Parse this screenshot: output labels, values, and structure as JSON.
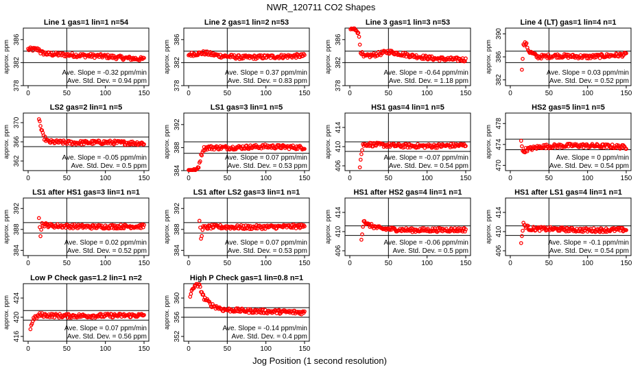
{
  "figure": {
    "title": "NWR_120711  CO2 Shapes",
    "xlabel": "Jog Position (1 second resolution)"
  },
  "chart_data": [
    {
      "type": "scatter",
      "title": "Line 1 gas=1 lin=1 n=54",
      "ylabel": "approx. ppm",
      "xlim": [
        0,
        150
      ],
      "ylim": [
        378,
        388
      ],
      "yticks": [
        378,
        382,
        386
      ],
      "xticks": [
        0,
        50,
        100,
        150
      ],
      "ref_lines": [
        384,
        382
      ],
      "stat_slope": "Ave. Slope = -0.32 ppm/min",
      "stat_sd": "Ave. Std. Dev. = 0.94 ppm",
      "series": [
        {
          "color": "#ff0000",
          "segments": [
            [
              0,
              384.3
            ],
            [
              15,
              384.3
            ],
            [
              16,
              383.8
            ],
            [
              25,
              383.5
            ],
            [
              60,
              383.3
            ],
            [
              100,
              383.1
            ],
            [
              125,
              382.8
            ],
            [
              150,
              382.6
            ]
          ]
        }
      ]
    },
    {
      "type": "scatter",
      "title": "Line 2 gas=1 lin=2 n=53",
      "ylabel": "approx. ppm",
      "xlim": [
        0,
        150
      ],
      "ylim": [
        378,
        388
      ],
      "yticks": [
        378,
        382,
        386
      ],
      "xticks": [
        0,
        50,
        100,
        150
      ],
      "ref_lines": [
        384,
        382
      ],
      "stat_slope": "Ave. Slope = 0.37 ppm/min",
      "stat_sd": "Ave. Std. Dev. = 0.83 ppm",
      "series": [
        {
          "color": "#ff0000",
          "segments": [
            [
              0,
              383.4
            ],
            [
              20,
              383.7
            ],
            [
              40,
              383.2
            ],
            [
              70,
              382.9
            ],
            [
              100,
              383.0
            ],
            [
              150,
              383.2
            ]
          ]
        }
      ]
    },
    {
      "type": "scatter",
      "title": "Line 3 gas=1 lin=3 n=53",
      "ylabel": "approx. ppm",
      "xlim": [
        0,
        150
      ],
      "ylim": [
        378,
        388
      ],
      "yticks": [
        378,
        382,
        386
      ],
      "xticks": [
        0,
        50,
        100,
        150
      ],
      "ref_lines": [
        384,
        382
      ],
      "stat_slope": "Ave. Slope = -0.64 ppm/min",
      "stat_sd": "Ave. Std. Dev. = 1.18 ppm",
      "series": [
        {
          "color": "#ff0000",
          "segments": [
            [
              1,
              387.8
            ],
            [
              9,
              387.8
            ],
            [
              12,
              386.5
            ],
            [
              14,
              384.0
            ],
            [
              18,
              383.0
            ],
            [
              30,
              383.3
            ],
            [
              50,
              383.9
            ],
            [
              80,
              383.2
            ],
            [
              110,
              382.7
            ],
            [
              150,
              382.5
            ]
          ]
        }
      ]
    },
    {
      "type": "scatter",
      "title": "Line 4 (LT) gas=1 lin=4 n=1",
      "ylabel": "approx. ppm",
      "xlim": [
        0,
        150
      ],
      "ylim": [
        381,
        391
      ],
      "yticks": [
        382,
        386,
        390
      ],
      "xticks": [
        0,
        50,
        100,
        150
      ],
      "ref_lines": [
        387,
        385
      ],
      "stat_slope": "Ave. Slope = 0.03 ppm/min",
      "stat_sd": "Ave. Std. Dev. = 0.52 ppm",
      "series": [
        {
          "color": "#ff0000",
          "segments": [
            [
              15,
              384.0
            ],
            [
              17,
              388.0
            ],
            [
              20,
              388.4
            ],
            [
              24,
              387.0
            ],
            [
              35,
              386.0
            ],
            [
              60,
              386.2
            ],
            [
              100,
              386.0
            ],
            [
              150,
              386.4
            ]
          ]
        }
      ]
    },
    {
      "type": "scatter",
      "title": "LS2 gas=2 lin=1 n=5",
      "ylabel": "approx. ppm",
      "xlim": [
        0,
        150
      ],
      "ylim": [
        360,
        372
      ],
      "yticks": [
        362,
        366,
        370
      ],
      "xticks": [
        0,
        50,
        100,
        150
      ],
      "ref_lines": [
        367,
        365
      ],
      "stat_slope": "Ave. Slope = -0.05 ppm/min",
      "stat_sd": "Ave. Std. Dev. = 0.5 ppm",
      "series": [
        {
          "color": "#ff0000",
          "segments": [
            [
              14,
              371.0
            ],
            [
              17,
              368.5
            ],
            [
              20,
              367.0
            ],
            [
              26,
              366.0
            ],
            [
              60,
              365.8
            ],
            [
              100,
              365.9
            ],
            [
              150,
              365.7
            ]
          ]
        }
      ]
    },
    {
      "type": "scatter",
      "title": "LS1 gas=3 lin=1 n=5",
      "ylabel": "approx. ppm",
      "xlim": [
        0,
        150
      ],
      "ylim": [
        384,
        394
      ],
      "yticks": [
        384,
        388,
        392
      ],
      "xticks": [
        0,
        50,
        100,
        150
      ],
      "ref_lines": [
        389,
        387
      ],
      "stat_slope": "Ave. Slope = 0.07 ppm/min",
      "stat_sd": "Ave. Std. Dev. = 0.53 ppm",
      "series": [
        {
          "color": "#ff0000",
          "segments": [
            [
              0,
              384.0
            ],
            [
              10,
              384.0
            ],
            [
              13,
              384.8
            ],
            [
              16,
              386.5
            ],
            [
              19,
              387.8
            ],
            [
              25,
              388.0
            ],
            [
              60,
              388.0
            ],
            [
              100,
              388.2
            ],
            [
              150,
              388.0
            ]
          ]
        }
      ]
    },
    {
      "type": "scatter",
      "title": "HS1 gas=4 lin=1 n=5",
      "ylabel": "approx. ppm",
      "xlim": [
        0,
        150
      ],
      "ylim": [
        405,
        417
      ],
      "yticks": [
        406,
        410,
        414
      ],
      "xticks": [
        0,
        50,
        100,
        150
      ],
      "ref_lines": [
        411,
        409
      ],
      "stat_slope": "Ave. Slope = -0.07 ppm/min",
      "stat_sd": "Ave. Std. Dev. = 0.54 ppm",
      "series": [
        {
          "color": "#ff0000",
          "segments": [
            [
              13,
              406.0
            ],
            [
              15,
              408.5
            ],
            [
              17,
              410.3
            ],
            [
              22,
              410.5
            ],
            [
              60,
              410.2
            ],
            [
              100,
              410.1
            ],
            [
              150,
              410.3
            ]
          ]
        }
      ]
    },
    {
      "type": "scatter",
      "title": "HS2 gas=5 lin=1 n=5",
      "ylabel": "approx. ppm",
      "xlim": [
        0,
        150
      ],
      "ylim": [
        469,
        480
      ],
      "yticks": [
        470,
        474,
        478
      ],
      "xticks": [
        0,
        50,
        100,
        150
      ],
      "ref_lines": [
        475,
        473
      ],
      "stat_slope": "Ave. Slope = 0 ppm/min",
      "stat_sd": "Ave. Std. Dev. = 0.54 ppm",
      "series": [
        {
          "color": "#ff0000",
          "segments": [
            [
              14,
              475.0
            ],
            [
              16,
              472.5
            ],
            [
              20,
              473.0
            ],
            [
              40,
              473.6
            ],
            [
              80,
              473.8
            ],
            [
              120,
              473.7
            ],
            [
              150,
              473.5
            ]
          ]
        }
      ]
    },
    {
      "type": "scatter",
      "title": "LS1 after HS1 gas=3 lin=1 n=1",
      "ylabel": "approx. ppm",
      "xlim": [
        0,
        150
      ],
      "ylim": [
        383,
        394
      ],
      "yticks": [
        384,
        388,
        392
      ],
      "xticks": [
        0,
        50,
        100,
        150
      ],
      "ref_lines": [
        389.3,
        387.3
      ],
      "stat_slope": "Ave. Slope = 0.02 ppm/min",
      "stat_sd": "Ave. Std. Dev. = 0.52 ppm",
      "series": [
        {
          "color": "#ff0000",
          "segments": [
            [
              14,
              390.5
            ],
            [
              16,
              387.0
            ],
            [
              18,
              389.0
            ],
            [
              30,
              388.7
            ],
            [
              80,
              388.5
            ],
            [
              150,
              388.6
            ]
          ]
        }
      ]
    },
    {
      "type": "scatter",
      "title": "LS1 after LS2 gas=3 lin=1 n=1",
      "ylabel": "approx. ppm",
      "xlim": [
        0,
        150
      ],
      "ylim": [
        383,
        394
      ],
      "yticks": [
        384,
        388,
        392
      ],
      "xticks": [
        0,
        50,
        100,
        150
      ],
      "ref_lines": [
        389.3,
        387.3
      ],
      "stat_slope": "Ave. Slope = 0.07 ppm/min",
      "stat_sd": "Ave. Std. Dev. = 0.53 ppm",
      "series": [
        {
          "color": "#ff0000",
          "segments": [
            [
              14,
              389.8
            ],
            [
              16,
              386.5
            ],
            [
              19,
              388.3
            ],
            [
              30,
              388.5
            ],
            [
              80,
              388.4
            ],
            [
              150,
              388.6
            ]
          ]
        }
      ]
    },
    {
      "type": "scatter",
      "title": "HS1 after HS2 gas=4 lin=1 n=1",
      "ylabel": "approx. ppm",
      "xlim": [
        0,
        150
      ],
      "ylim": [
        405,
        417
      ],
      "yticks": [
        406,
        410,
        414
      ],
      "xticks": [
        0,
        50,
        100,
        150
      ],
      "ref_lines": [
        411.2,
        409.2
      ],
      "stat_slope": "Ave. Slope = -0.06 ppm/min",
      "stat_sd": "Ave. Std. Dev. = 0.5 ppm",
      "series": [
        {
          "color": "#ff0000",
          "segments": [
            [
              15,
              408.5
            ],
            [
              18,
              412.5
            ],
            [
              22,
              411.5
            ],
            [
              40,
              410.6
            ],
            [
              80,
              410.3
            ],
            [
              150,
              410.4
            ]
          ]
        }
      ]
    },
    {
      "type": "scatter",
      "title": "HS1 after LS1 gas=4 lin=1 n=1",
      "ylabel": "approx. ppm",
      "xlim": [
        0,
        150
      ],
      "ylim": [
        405,
        417
      ],
      "yticks": [
        406,
        410,
        414
      ],
      "xticks": [
        0,
        50,
        100,
        150
      ],
      "ref_lines": [
        411.2,
        409.2
      ],
      "stat_slope": "Ave. Slope = -0.1 ppm/min",
      "stat_sd": "Ave. Std. Dev. = 0.54 ppm",
      "series": [
        {
          "color": "#ff0000",
          "segments": [
            [
              14,
              407.8
            ],
            [
              17,
              411.5
            ],
            [
              25,
              410.6
            ],
            [
              60,
              410.5
            ],
            [
              100,
              410.3
            ],
            [
              150,
              410.4
            ]
          ]
        }
      ]
    },
    {
      "type": "scatter",
      "title": "Low P Check gas=1.2 lin=1 n=2",
      "ylabel": "approx. ppm",
      "xlim": [
        0,
        150
      ],
      "ylim": [
        415,
        427
      ],
      "yticks": [
        416,
        420,
        424
      ],
      "xticks": [
        0,
        50,
        100,
        150
      ],
      "ref_lines": [
        421.4,
        419.4
      ],
      "stat_slope": "Ave. Slope = 0.07 ppm/min",
      "stat_sd": "Ave. Std. Dev. = 0.56 ppm",
      "series": [
        {
          "color": "#ff0000",
          "segments": [
            [
              3,
              417.5
            ],
            [
              6,
              419.5
            ],
            [
              15,
              420.5
            ],
            [
              40,
              420.3
            ],
            [
              80,
              420.3
            ],
            [
              150,
              420.4
            ]
          ]
        }
      ]
    },
    {
      "type": "scatter",
      "title": "High P Check gas=1 lin=0.8 n=1",
      "ylabel": "approx. ppm",
      "xlim": [
        0,
        150
      ],
      "ylim": [
        351,
        363
      ],
      "yticks": [
        352,
        356,
        360
      ],
      "xticks": [
        0,
        50,
        100,
        150
      ],
      "ref_lines": [
        358,
        356
      ],
      "stat_slope": "Ave. Slope = -0.14 ppm/min",
      "stat_sd": "Ave. Std. Dev. = 0.4 ppm",
      "series": [
        {
          "color": "#ff0000",
          "segments": [
            [
              2,
              360.5
            ],
            [
              8,
              362.8
            ],
            [
              14,
              362.5
            ],
            [
              20,
              360.0
            ],
            [
              30,
              358.5
            ],
            [
              45,
              357.6
            ],
            [
              80,
              357.3
            ],
            [
              150,
              357.0
            ]
          ]
        }
      ]
    }
  ]
}
